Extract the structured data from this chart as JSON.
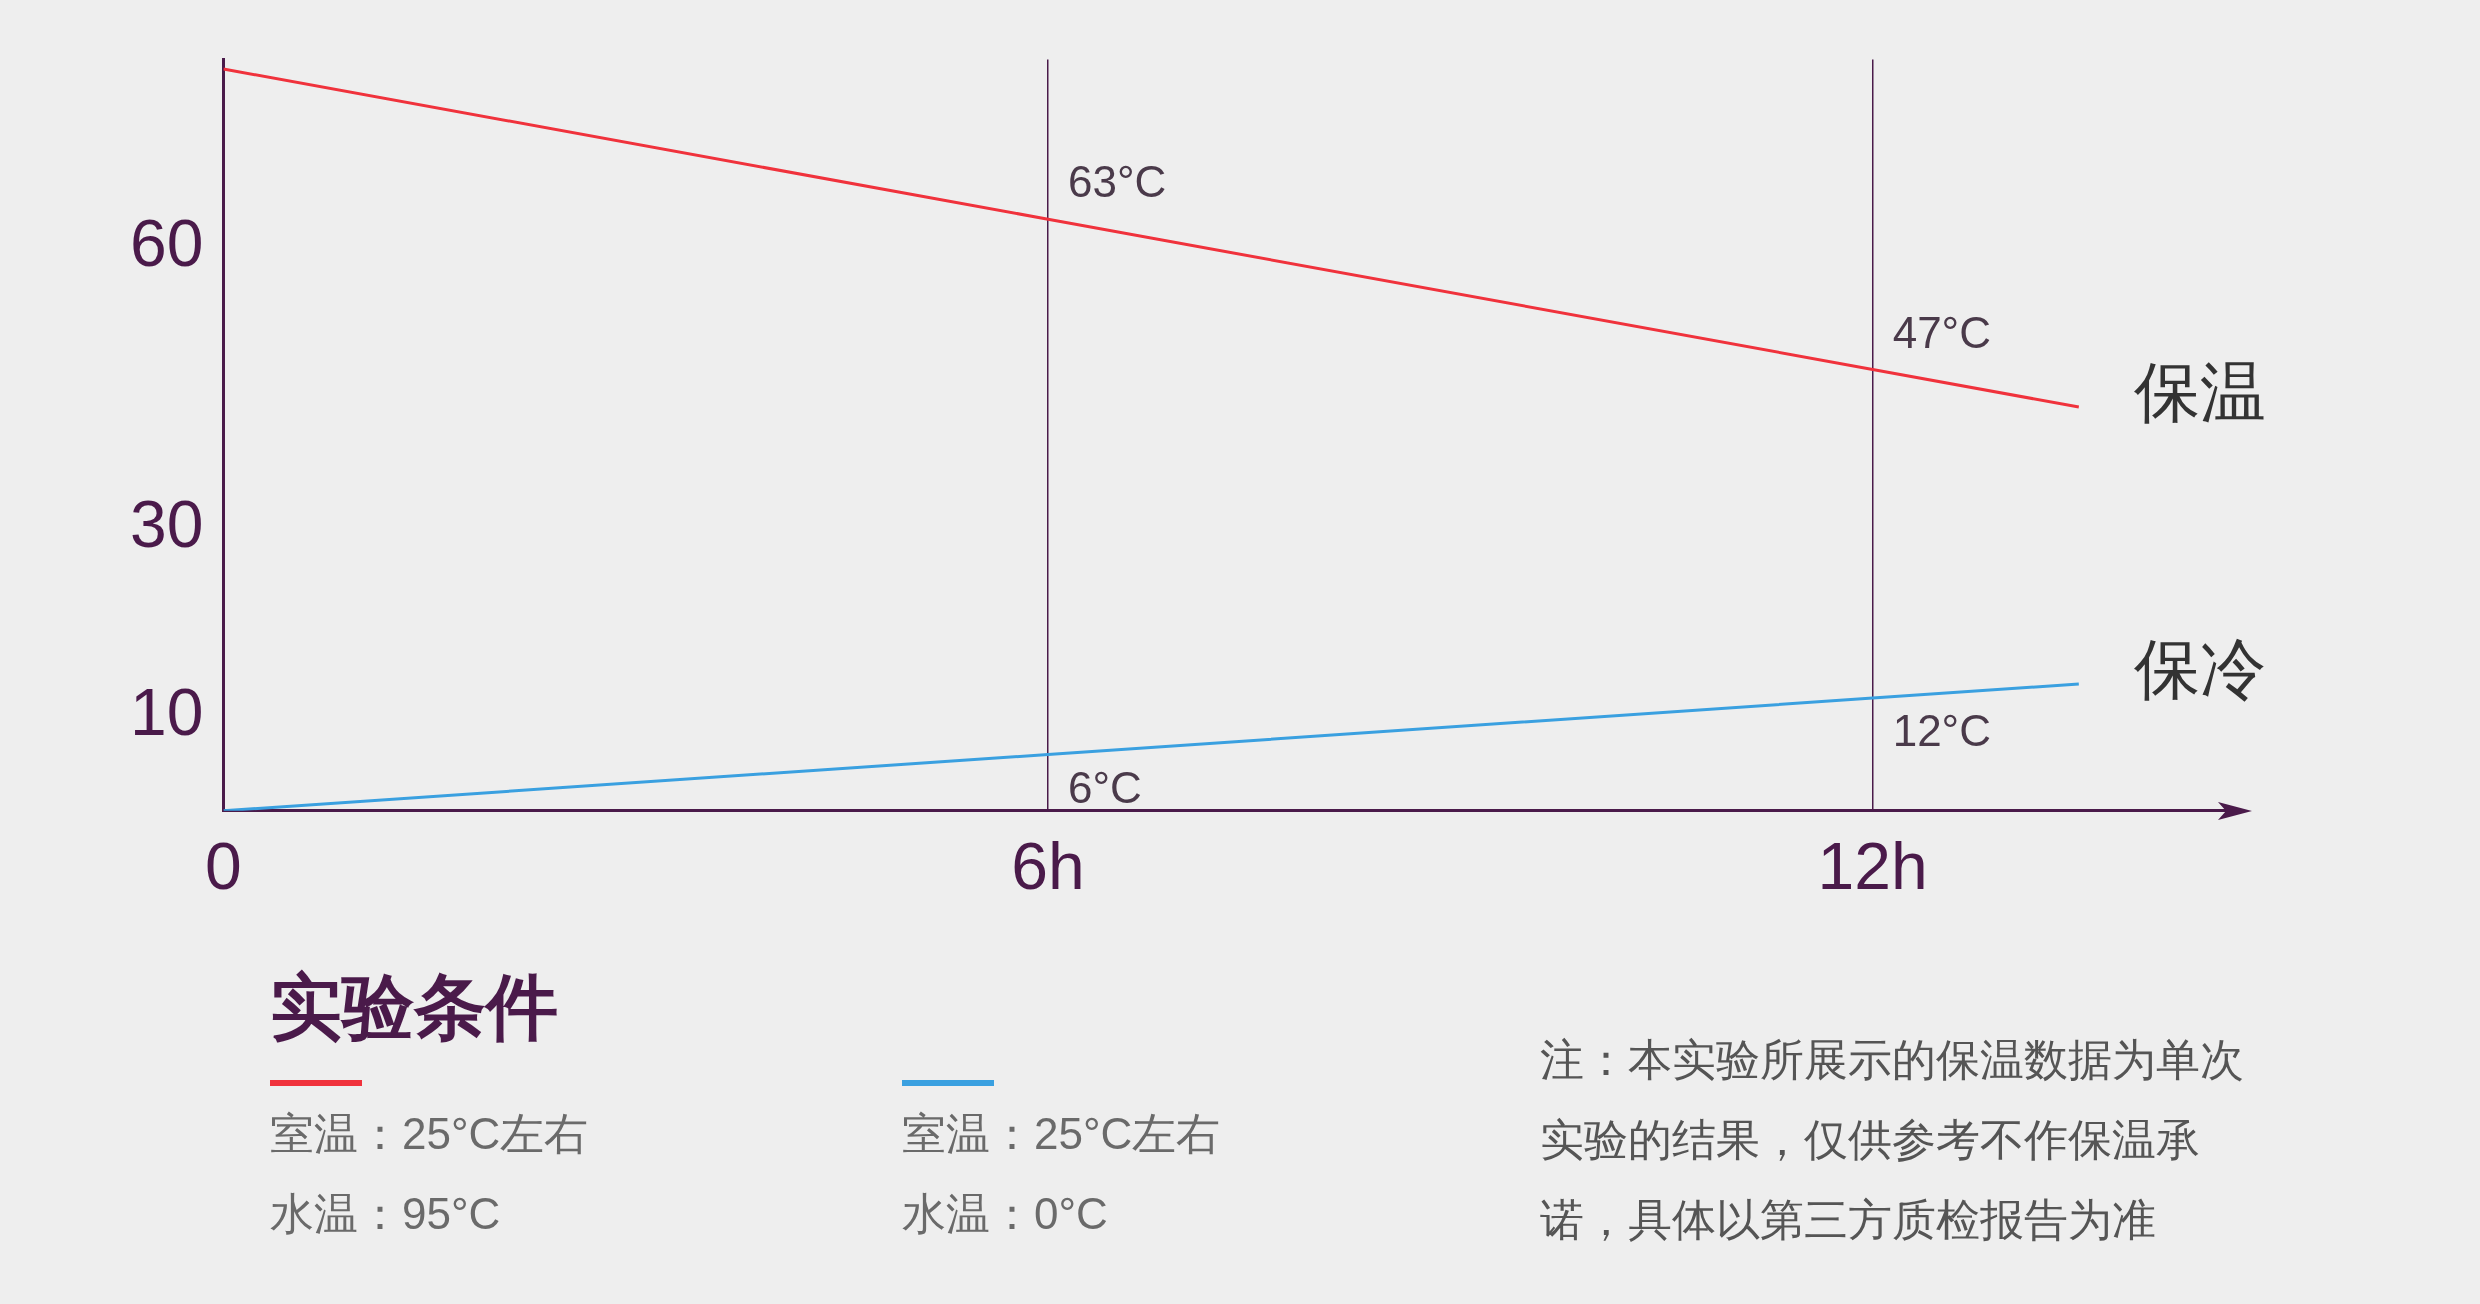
{
  "chart_data": {
    "type": "line",
    "x": [
      0,
      6,
      12,
      13.5
    ],
    "series": [
      {
        "name": "保温",
        "color": "#f0323c",
        "values": [
          79,
          63,
          47,
          43
        ],
        "value_labels": [
          null,
          "63°C",
          "47°C",
          null
        ]
      },
      {
        "name": "保冷",
        "color": "#3aa0e0",
        "values": [
          0,
          6,
          12,
          13.5
        ],
        "value_labels": [
          null,
          "6°C",
          "12°C",
          null
        ]
      }
    ],
    "xlim": [
      0,
      14.6
    ],
    "xticks": [
      0,
      {
        "value": 6,
        "label": "6h"
      },
      {
        "value": 12,
        "label": "12h"
      }
    ],
    "ylim": [
      0,
      80
    ],
    "yticks": [
      10,
      30,
      60
    ],
    "grid": "x",
    "legend": "bottom",
    "legend_title": "实验条件",
    "marker": "none",
    "annotations": [
      "室温：25°C左右",
      "水温：95°C",
      "室温：25°C左右",
      "水温：0°C",
      "注：本实验所展示的保温数据为单次实验的结果，仅供参考不作保温承诺，具体以第三方质检报告为准"
    ]
  }
}
